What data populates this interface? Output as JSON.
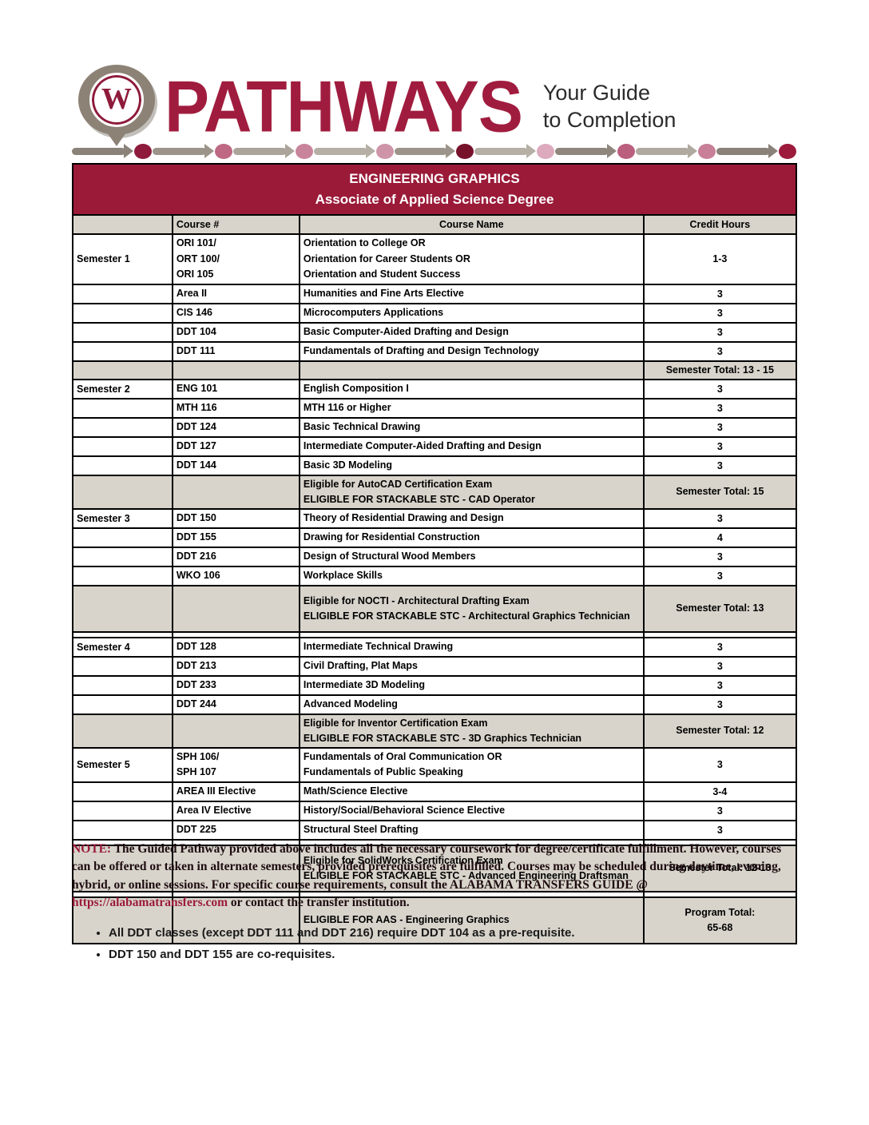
{
  "header": {
    "logo_letter": "W",
    "brand": "PATHWAYS",
    "tagline_line1": "Your Guide",
    "tagline_line2": "to Completion",
    "path_segments": [
      {
        "arrow": "#8a8178",
        "dot": "#8e1b3b"
      },
      {
        "arrow": "#9c948a",
        "dot": "#be6883"
      },
      {
        "arrow": "#aba49b",
        "dot": "#c8849b"
      },
      {
        "arrow": "#b5afa6",
        "dot": "#ce95a9"
      },
      {
        "arrow": "#9c948a",
        "dot": "#771129"
      },
      {
        "arrow": "#b5afa6",
        "dot": "#dcaabc"
      },
      {
        "arrow": "#8f877d",
        "dot": "#bb5f7e"
      },
      {
        "arrow": "#b0a9a0",
        "dot": "#c87f98"
      },
      {
        "arrow": "#8a8178",
        "dot": "#9c1b3c"
      }
    ]
  },
  "table": {
    "title_line1": "ENGINEERING GRAPHICS",
    "title_line2": "Associate of Applied Science Degree",
    "columns": {
      "semester": "",
      "course_number": "Course #",
      "course_name": "Course Name",
      "credit_hours": "Credit Hours"
    },
    "accent_color": "#9a1a38",
    "total_row_color": "#d8d4cb",
    "rows": [
      {
        "type": "course",
        "semester": "Semester 1",
        "courses": [
          "ORI 101/",
          "ORT 100/",
          "ORI 105"
        ],
        "names": [
          "Orientation to College OR",
          "Orientation for Career Students OR",
          "Orientation and Student Success"
        ],
        "credit": "1-3"
      },
      {
        "type": "course",
        "semester": "",
        "courses": [
          "Area II"
        ],
        "names": [
          "Humanities and Fine Arts Elective"
        ],
        "credit": "3"
      },
      {
        "type": "course",
        "semester": "",
        "courses": [
          "CIS 146"
        ],
        "names": [
          "Microcomputers Applications"
        ],
        "credit": "3"
      },
      {
        "type": "course",
        "semester": "",
        "courses": [
          "DDT 104"
        ],
        "names": [
          "Basic Computer-Aided Drafting and Design"
        ],
        "credit": "3"
      },
      {
        "type": "course",
        "semester": "",
        "courses": [
          "DDT 111"
        ],
        "names": [
          "Fundamentals of Drafting and Design Technology"
        ],
        "credit": "3"
      },
      {
        "type": "total",
        "note_lines": [],
        "total_lines": [
          "Semester Total: 13 - 15"
        ],
        "pad": false
      },
      {
        "type": "course",
        "semester": "Semester 2",
        "courses": [
          "ENG 101"
        ],
        "names": [
          "English Composition I"
        ],
        "credit": "3"
      },
      {
        "type": "course",
        "semester": "",
        "courses": [
          "MTH 116"
        ],
        "names": [
          "MTH 116 or Higher"
        ],
        "credit": "3"
      },
      {
        "type": "course",
        "semester": "",
        "courses": [
          "DDT 124"
        ],
        "names": [
          "Basic Technical Drawing"
        ],
        "credit": "3"
      },
      {
        "type": "course",
        "semester": "",
        "courses": [
          "DDT 127"
        ],
        "names": [
          "Intermediate Computer-Aided Drafting and Design"
        ],
        "credit": "3"
      },
      {
        "type": "course",
        "semester": "",
        "courses": [
          "DDT 144"
        ],
        "names": [
          "Basic 3D Modeling"
        ],
        "credit": "3"
      },
      {
        "type": "total",
        "note_lines": [
          "Eligible for AutoCAD Certification Exam",
          "ELIGIBLE FOR STACKABLE STC - CAD Operator"
        ],
        "total_lines": [
          "Semester Total: 15"
        ],
        "pad": false
      },
      {
        "type": "course",
        "semester": "Semester 3",
        "courses": [
          "DDT 150"
        ],
        "names": [
          "Theory of Residential Drawing and Design"
        ],
        "credit": "3"
      },
      {
        "type": "course",
        "semester": "",
        "courses": [
          "DDT 155"
        ],
        "names": [
          "Drawing for Residential Construction"
        ],
        "credit": "4"
      },
      {
        "type": "course",
        "semester": "",
        "courses": [
          "DDT 216"
        ],
        "names": [
          "Design of Structural Wood Members"
        ],
        "credit": "3"
      },
      {
        "type": "course",
        "semester": "",
        "courses": [
          "WKO 106"
        ],
        "names": [
          "Workplace Skills"
        ],
        "credit": "3"
      },
      {
        "type": "total",
        "note_lines": [
          "Eligible for NOCTI - Architectural Drafting Exam",
          "ELIGIBLE FOR STACKABLE STC - Architectural Graphics Technician"
        ],
        "total_lines": [
          "Semester Total: 13"
        ],
        "pad": true
      },
      {
        "type": "spacer"
      },
      {
        "type": "course",
        "semester": "Semester 4",
        "courses": [
          "DDT 128"
        ],
        "names": [
          "Intermediate Technical Drawing"
        ],
        "credit": "3"
      },
      {
        "type": "course",
        "semester": "",
        "courses": [
          "DDT 213"
        ],
        "names": [
          "Civil Drafting, Plat Maps"
        ],
        "credit": "3"
      },
      {
        "type": "course",
        "semester": "",
        "courses": [
          "DDT 233"
        ],
        "names": [
          "Intermediate 3D Modeling"
        ],
        "credit": "3"
      },
      {
        "type": "course",
        "semester": "",
        "courses": [
          "DDT 244"
        ],
        "names": [
          "Advanced Modeling"
        ],
        "credit": "3"
      },
      {
        "type": "total",
        "note_lines": [
          "Eligible for Inventor Certification Exam",
          "ELIGIBLE FOR STACKABLE STC - 3D Graphics Technician"
        ],
        "total_lines": [
          "Semester Total: 12"
        ],
        "pad": false
      },
      {
        "type": "course",
        "semester": "Semester 5",
        "courses": [
          "SPH 106/",
          "SPH 107"
        ],
        "names": [
          "Fundamentals of Oral Communication OR",
          "Fundamentals of Public Speaking"
        ],
        "credit": "3"
      },
      {
        "type": "course",
        "semester": "",
        "courses": [
          "AREA III Elective"
        ],
        "names": [
          "Math/Science Elective"
        ],
        "credit": "3-4"
      },
      {
        "type": "course",
        "semester": "",
        "courses": [
          "Area IV Elective"
        ],
        "names": [
          "History/Social/Behavioral Science Elective"
        ],
        "credit": "3"
      },
      {
        "type": "course",
        "semester": "",
        "courses": [
          "DDT 225"
        ],
        "names": [
          "Structural Steel Drafting"
        ],
        "credit": "3"
      },
      {
        "type": "spacer"
      },
      {
        "type": "total",
        "note_lines": [
          "Eligible for SolidWorks Certification Exam",
          "ELIGIBLE FOR STACKABLE STC - Advanced Engineering Draftsman"
        ],
        "total_lines": [
          "Semester Total: 12-13"
        ],
        "pad": true
      },
      {
        "type": "spacer"
      },
      {
        "type": "total",
        "note_lines": [
          "ELIGIBLE FOR AAS - Engineering Graphics"
        ],
        "total_lines": [
          "Program Total:",
          "65-68"
        ],
        "pad": true
      }
    ]
  },
  "note": {
    "label": "NOTE:",
    "body1": "The Guided Pathway provided above includes all the necessary coursework for degree/certificate fulfillment. However, courses can be offered or taken in alternate semesters, provided prerequisites are fulfilled. Courses may be scheduled during daytime, evening, hybrid, or online sessions. For specific course requirements, consult the ALABAMA TRANSFERS GUIDE @ ",
    "link": "https://alabamatransfers.com",
    "body2": " or contact the transfer institution."
  },
  "bullets": [
    "All DDT classes (except DDT 111 and DDT 216) require DDT 104 as a pre-requisite.",
    "DDT 150 and DDT 155 are co-requisites."
  ]
}
